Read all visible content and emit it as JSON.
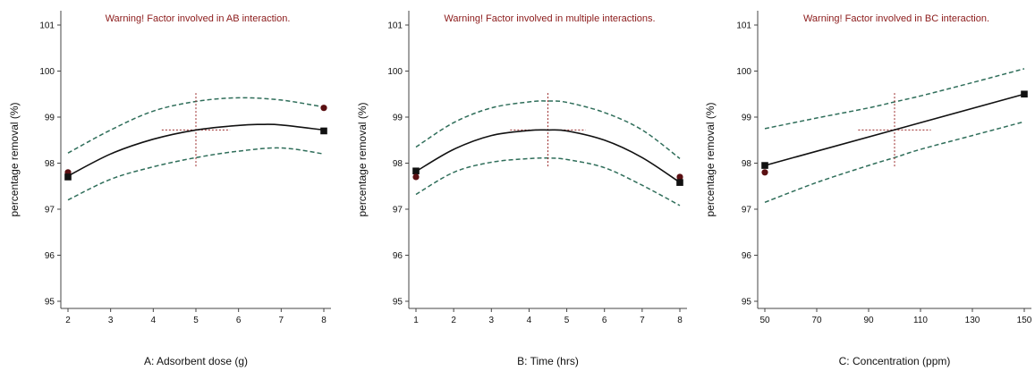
{
  "chart_data": [
    {
      "type": "line",
      "warning": "Warning! Factor involved in AB interaction.",
      "xlabel": "A: Adsorbent dose (g)",
      "ylabel": "percentage removal (%)",
      "xlim": [
        2,
        8
      ],
      "ylim": [
        95,
        101
      ],
      "xticks": [
        "2",
        "3",
        "4",
        "5",
        "6",
        "7",
        "8"
      ],
      "yticks": [
        "95",
        "96",
        "97",
        "98",
        "99",
        "100",
        "101"
      ],
      "fit": {
        "x": [
          2,
          3,
          4,
          5,
          6,
          6.5,
          7,
          8
        ],
        "y": [
          97.72,
          98.2,
          98.52,
          98.72,
          98.82,
          98.84,
          98.83,
          98.72
        ]
      },
      "lower": {
        "x": [
          2,
          3,
          4,
          5,
          6,
          7,
          8
        ],
        "y": [
          97.2,
          97.65,
          97.92,
          98.12,
          98.26,
          98.33,
          98.2
        ]
      },
      "upper": {
        "x": [
          2,
          3,
          4,
          5,
          6,
          7,
          8
        ],
        "y": [
          98.22,
          98.72,
          99.13,
          99.34,
          99.42,
          99.37,
          99.22
        ]
      },
      "points": [
        {
          "x": 2,
          "y": 97.8,
          "shape": "circle"
        },
        {
          "x": 2,
          "y": 97.7,
          "shape": "square"
        },
        {
          "x": 8,
          "y": 99.2,
          "shape": "circle"
        },
        {
          "x": 8,
          "y": 98.7,
          "shape": "square"
        }
      ],
      "center": {
        "x": 5,
        "y": 98.72,
        "xspan": [
          4.2,
          5.8
        ],
        "yspan": [
          97.93,
          99.55
        ]
      },
      "colors": {
        "fit": "#111111",
        "band": "#2f6e5a",
        "center": "#9b2a2a",
        "point_circle": "#5a0f12",
        "point_square": "#111111"
      }
    },
    {
      "type": "line",
      "warning": "Warning! Factor involved in multiple interactions.",
      "xlabel": "B: Time (hrs)",
      "ylabel": "percentage removal (%)",
      "xlim": [
        1,
        8
      ],
      "ylim": [
        95,
        101
      ],
      "xticks": [
        "1",
        "2",
        "3",
        "4",
        "5",
        "6",
        "7",
        "8"
      ],
      "yticks": [
        "95",
        "96",
        "97",
        "98",
        "99",
        "100",
        "101"
      ],
      "fit": {
        "x": [
          1,
          2,
          3,
          4,
          4.5,
          5,
          6,
          7,
          8
        ],
        "y": [
          97.82,
          98.3,
          98.6,
          98.71,
          98.72,
          98.7,
          98.5,
          98.12,
          97.58
        ]
      },
      "lower": {
        "x": [
          1,
          2,
          3,
          4,
          4.5,
          5,
          6,
          7,
          8
        ],
        "y": [
          97.32,
          97.8,
          98.02,
          98.1,
          98.11,
          98.08,
          97.9,
          97.52,
          97.08
        ]
      },
      "upper": {
        "x": [
          1,
          2,
          3,
          4,
          4.5,
          5,
          6,
          7,
          8
        ],
        "y": [
          98.35,
          98.88,
          99.2,
          99.33,
          99.35,
          99.32,
          99.1,
          98.72,
          98.1
        ]
      },
      "points": [
        {
          "x": 1,
          "y": 97.83,
          "shape": "square"
        },
        {
          "x": 1,
          "y": 97.7,
          "shape": "circle"
        },
        {
          "x": 8,
          "y": 97.7,
          "shape": "circle"
        },
        {
          "x": 8,
          "y": 97.58,
          "shape": "square"
        }
      ],
      "center": {
        "x": 4.5,
        "y": 98.72,
        "xspan": [
          3.5,
          5.5
        ],
        "yspan": [
          97.93,
          99.55
        ]
      },
      "colors": {
        "fit": "#111111",
        "band": "#2f6e5a",
        "center": "#9b2a2a",
        "point_circle": "#5a0f12",
        "point_square": "#111111"
      }
    },
    {
      "type": "line",
      "warning": "Warning! Factor involved in BC interaction.",
      "xlabel": "C: Concentration (ppm)",
      "ylabel": "percentage removal (%)",
      "xlim": [
        50,
        150
      ],
      "ylim": [
        95,
        101
      ],
      "xticks": [
        "50",
        "70",
        "90",
        "110",
        "130",
        "150"
      ],
      "yticks": [
        "95",
        "96",
        "97",
        "98",
        "99",
        "100",
        "101"
      ],
      "fit": {
        "x": [
          50,
          150
        ],
        "y": [
          97.95,
          99.5
        ]
      },
      "lower": {
        "x": [
          50,
          70,
          90,
          100,
          110,
          130,
          150
        ],
        "y": [
          97.15,
          97.58,
          97.95,
          98.12,
          98.3,
          98.6,
          98.9
        ]
      },
      "upper": {
        "x": [
          50,
          70,
          90,
          100,
          110,
          130,
          150
        ],
        "y": [
          98.75,
          98.98,
          99.2,
          99.33,
          99.46,
          99.75,
          100.05
        ]
      },
      "points": [
        {
          "x": 50,
          "y": 97.95,
          "shape": "square"
        },
        {
          "x": 50,
          "y": 97.8,
          "shape": "circle"
        },
        {
          "x": 150,
          "y": 99.5,
          "shape": "square"
        }
      ],
      "center": {
        "x": 100,
        "y": 98.72,
        "xspan": [
          86,
          114
        ],
        "yspan": [
          97.93,
          99.55
        ]
      },
      "colors": {
        "fit": "#111111",
        "band": "#2f6e5a",
        "center": "#9b2a2a",
        "point_circle": "#5a0f12",
        "point_square": "#111111"
      }
    }
  ]
}
